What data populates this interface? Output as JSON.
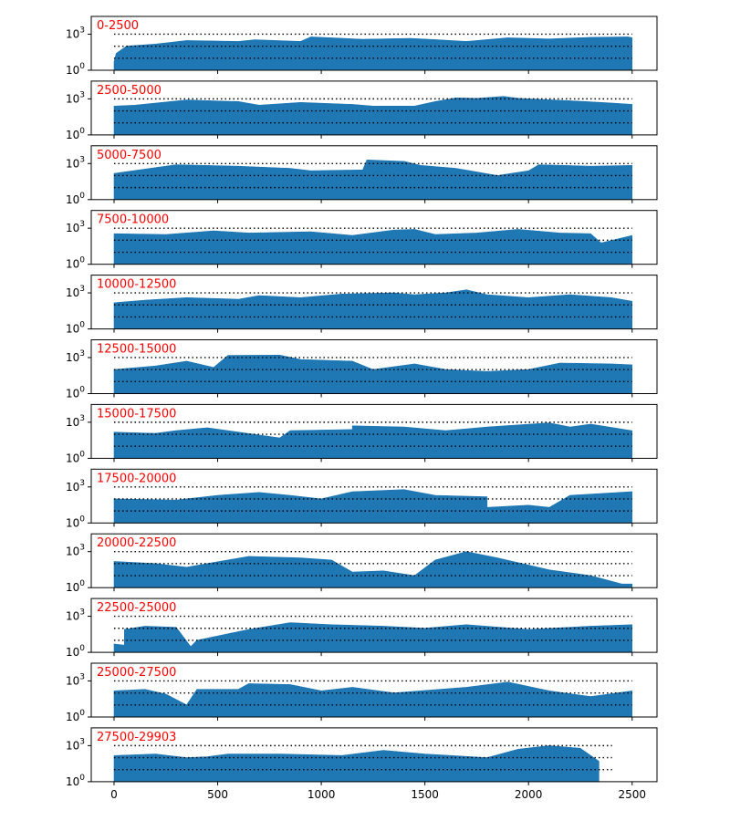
{
  "chart_data": {
    "type": "area",
    "title": "",
    "xlabel": "",
    "ylabel": "",
    "y_scale": "log",
    "y_range": [
      1,
      30000
    ],
    "y_ticks": [
      {
        "value": 1,
        "base": "10",
        "exp": "0"
      },
      {
        "value": 1000,
        "base": "10",
        "exp": "3"
      }
    ],
    "x_range": [
      -110,
      2620
    ],
    "x_ticks": [
      0,
      500,
      1000,
      1500,
      2000,
      2500
    ],
    "reference_lines": [
      1000,
      100,
      10
    ],
    "grid": false,
    "label_color": "#ff0000",
    "fill_color": "#1f77b4",
    "panels": [
      {
        "label": "0-2500",
        "length": 2500,
        "profile": [
          [
            0,
            5
          ],
          [
            10,
            25
          ],
          [
            60,
            100
          ],
          [
            200,
            150
          ],
          [
            350,
            300
          ],
          [
            600,
            250
          ],
          [
            680,
            350
          ],
          [
            900,
            250
          ],
          [
            950,
            600
          ],
          [
            1200,
            380
          ],
          [
            1430,
            450
          ],
          [
            1560,
            350
          ],
          [
            1700,
            250
          ],
          [
            1900,
            500
          ],
          [
            2100,
            400
          ],
          [
            2300,
            550
          ],
          [
            2480,
            600
          ],
          [
            2500,
            500
          ]
        ]
      },
      {
        "label": "2500-5000",
        "length": 2500,
        "profile": [
          [
            0,
            250
          ],
          [
            100,
            300
          ],
          [
            350,
            800
          ],
          [
            600,
            600
          ],
          [
            700,
            300
          ],
          [
            900,
            500
          ],
          [
            1150,
            350
          ],
          [
            1250,
            250
          ],
          [
            1450,
            250
          ],
          [
            1550,
            600
          ],
          [
            1650,
            1200
          ],
          [
            1750,
            1100
          ],
          [
            1880,
            1600
          ],
          [
            1950,
            1100
          ],
          [
            2200,
            700
          ],
          [
            2400,
            450
          ],
          [
            2500,
            350
          ]
        ]
      },
      {
        "label": "5000-7500",
        "length": 2500,
        "profile": [
          [
            0,
            150
          ],
          [
            300,
            800
          ],
          [
            600,
            600
          ],
          [
            850,
            400
          ],
          [
            950,
            250
          ],
          [
            1200,
            300
          ],
          [
            1220,
            2000
          ],
          [
            1400,
            1500
          ],
          [
            1480,
            700
          ],
          [
            1650,
            400
          ],
          [
            1850,
            100
          ],
          [
            2000,
            250
          ],
          [
            2050,
            800
          ],
          [
            2300,
            600
          ],
          [
            2500,
            700
          ]
        ]
      },
      {
        "label": "7500-10000",
        "length": 2500,
        "profile": [
          [
            0,
            350
          ],
          [
            250,
            300
          ],
          [
            480,
            600
          ],
          [
            650,
            400
          ],
          [
            950,
            500
          ],
          [
            1150,
            250
          ],
          [
            1350,
            700
          ],
          [
            1450,
            800
          ],
          [
            1550,
            300
          ],
          [
            1750,
            400
          ],
          [
            1950,
            800
          ],
          [
            2150,
            400
          ],
          [
            2300,
            350
          ],
          [
            2350,
            60
          ],
          [
            2500,
            250
          ]
        ]
      },
      {
        "label": "10000-12500",
        "length": 2500,
        "profile": [
          [
            0,
            150
          ],
          [
            150,
            250
          ],
          [
            350,
            400
          ],
          [
            600,
            300
          ],
          [
            700,
            600
          ],
          [
            900,
            400
          ],
          [
            1100,
            800
          ],
          [
            1350,
            1000
          ],
          [
            1450,
            700
          ],
          [
            1600,
            1000
          ],
          [
            1700,
            1800
          ],
          [
            1800,
            700
          ],
          [
            2000,
            400
          ],
          [
            2200,
            700
          ],
          [
            2400,
            400
          ],
          [
            2500,
            200
          ]
        ]
      },
      {
        "label": "12500-15000",
        "length": 2500,
        "profile": [
          [
            0,
            100
          ],
          [
            200,
            200
          ],
          [
            350,
            500
          ],
          [
            480,
            150
          ],
          [
            550,
            1500
          ],
          [
            800,
            1600
          ],
          [
            900,
            700
          ],
          [
            1150,
            500
          ],
          [
            1250,
            100
          ],
          [
            1450,
            300
          ],
          [
            1600,
            100
          ],
          [
            1800,
            70
          ],
          [
            2000,
            100
          ],
          [
            2150,
            350
          ],
          [
            2400,
            300
          ],
          [
            2500,
            250
          ]
        ]
      },
      {
        "label": "15000-17500",
        "length": 2500,
        "profile": [
          [
            0,
            150
          ],
          [
            200,
            120
          ],
          [
            300,
            200
          ],
          [
            450,
            350
          ],
          [
            600,
            150
          ],
          [
            800,
            50
          ],
          [
            850,
            200
          ],
          [
            1150,
            250
          ],
          [
            1150,
            500
          ],
          [
            1400,
            400
          ],
          [
            1600,
            200
          ],
          [
            1800,
            400
          ],
          [
            2100,
            900
          ],
          [
            2200,
            400
          ],
          [
            2300,
            700
          ],
          [
            2500,
            200
          ]
        ]
      },
      {
        "label": "17500-20000",
        "length": 2500,
        "profile": [
          [
            0,
            100
          ],
          [
            300,
            80
          ],
          [
            500,
            200
          ],
          [
            700,
            350
          ],
          [
            850,
            200
          ],
          [
            1000,
            100
          ],
          [
            1150,
            400
          ],
          [
            1400,
            600
          ],
          [
            1550,
            200
          ],
          [
            1800,
            150
          ],
          [
            1800,
            20
          ],
          [
            2000,
            30
          ],
          [
            2100,
            20
          ],
          [
            2200,
            200
          ],
          [
            2500,
            400
          ]
        ]
      },
      {
        "label": "20000-22500",
        "length": 2500,
        "profile": [
          [
            0,
            150
          ],
          [
            200,
            100
          ],
          [
            350,
            50
          ],
          [
            450,
            100
          ],
          [
            650,
            400
          ],
          [
            900,
            300
          ],
          [
            1050,
            200
          ],
          [
            1150,
            20
          ],
          [
            1300,
            25
          ],
          [
            1450,
            10
          ],
          [
            1550,
            200
          ],
          [
            1700,
            1000
          ],
          [
            1850,
            300
          ],
          [
            2100,
            30
          ],
          [
            2300,
            10
          ],
          [
            2450,
            2
          ],
          [
            2500,
            2
          ]
        ]
      },
      {
        "label": "22500-25000",
        "length": 2500,
        "profile": [
          [
            0,
            5
          ],
          [
            50,
            4
          ],
          [
            50,
            80
          ],
          [
            150,
            150
          ],
          [
            300,
            120
          ],
          [
            370,
            3
          ],
          [
            400,
            10
          ],
          [
            650,
            80
          ],
          [
            850,
            300
          ],
          [
            1050,
            200
          ],
          [
            1300,
            150
          ],
          [
            1500,
            100
          ],
          [
            1700,
            200
          ],
          [
            2000,
            80
          ],
          [
            2300,
            150
          ],
          [
            2500,
            200
          ]
        ]
      },
      {
        "label": "25000-27500",
        "length": 2500,
        "profile": [
          [
            0,
            150
          ],
          [
            150,
            200
          ],
          [
            250,
            80
          ],
          [
            350,
            10
          ],
          [
            400,
            200
          ],
          [
            600,
            200
          ],
          [
            650,
            600
          ],
          [
            850,
            500
          ],
          [
            1000,
            150
          ],
          [
            1150,
            300
          ],
          [
            1350,
            100
          ],
          [
            1700,
            300
          ],
          [
            1900,
            800
          ],
          [
            2100,
            150
          ],
          [
            2300,
            50
          ],
          [
            2500,
            150
          ]
        ]
      },
      {
        "label": "27500-29903",
        "length": 2403,
        "profile": [
          [
            0,
            150
          ],
          [
            200,
            200
          ],
          [
            350,
            100
          ],
          [
            450,
            120
          ],
          [
            550,
            200
          ],
          [
            800,
            200
          ],
          [
            1100,
            150
          ],
          [
            1300,
            400
          ],
          [
            1500,
            200
          ],
          [
            1800,
            100
          ],
          [
            1950,
            500
          ],
          [
            2100,
            1000
          ],
          [
            2250,
            600
          ],
          [
            2340,
            50
          ],
          [
            2340,
            1
          ]
        ]
      }
    ]
  }
}
